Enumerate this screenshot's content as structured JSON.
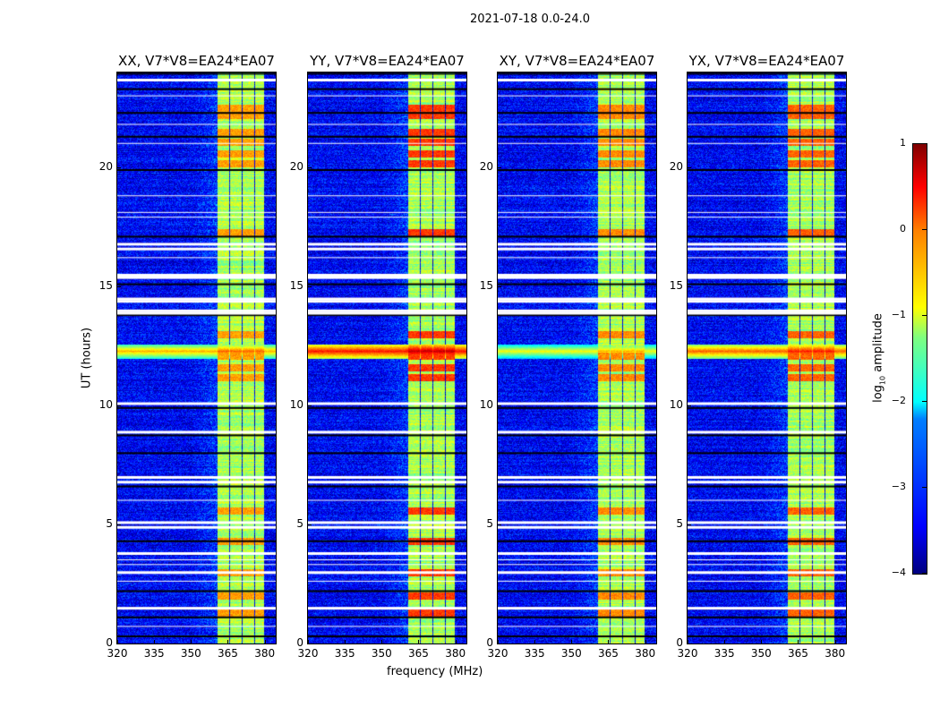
{
  "suptitle": "2021-07-18 0.0-24.0",
  "chart_data": {
    "type": "heatmap",
    "xlabel": "frequency (MHz)",
    "ylabel": "UT (hours)",
    "xlim": [
      320,
      384.5
    ],
    "ylim": [
      0,
      24
    ],
    "xticks": [
      320,
      335,
      350,
      365,
      380
    ],
    "yticks": [
      0,
      5,
      10,
      15,
      20
    ],
    "colorbar": {
      "label": "log10 amplitude",
      "label_main": "log",
      "label_sub": "10",
      "label_rest": " amplitude",
      "range": [
        -4,
        1
      ],
      "ticks": [
        1,
        0,
        -1,
        -2,
        -3,
        -4
      ],
      "colormap": "jet"
    },
    "features": {
      "background_level": -3.4,
      "rfi_band_columns_mhz": [
        [
          360.7,
          365.2
        ],
        [
          365.8,
          370.3
        ],
        [
          370.9,
          375.4
        ],
        [
          376.0,
          379.6
        ]
      ],
      "rfi_band_level": -1.3,
      "rfi_hot_times_ut": [
        22.5,
        22.2,
        21.5,
        21.1,
        20.6,
        20.2,
        17.3,
        13.0,
        12.1,
        11.6,
        11.2,
        5.6,
        4.3,
        3.0,
        2.0,
        1.3
      ],
      "broadband_event_ut": [
        12.0,
        12.6
      ],
      "flagged_white_times_ut": [
        23.7,
        16.8,
        16.6,
        15.5,
        15.4,
        14.5,
        14.4,
        14.0,
        13.9,
        10.1,
        8.9,
        7.0,
        6.8,
        5.1,
        4.9,
        3.8,
        3.0,
        1.5,
        23.0,
        21.8,
        21.0,
        18.8,
        18.1,
        17.9,
        16.2,
        6.0,
        3.5,
        3.3,
        2.6,
        0.7
      ],
      "flagged_black_times_ut": [
        23.95,
        23.3,
        22.3,
        21.3,
        19.9,
        17.1,
        15.1,
        13.8,
        9.9,
        8.75,
        8.0,
        6.6,
        4.3,
        2.2,
        1.1,
        0.3
      ]
    },
    "panels": [
      {
        "title": "XX, V7*V8=EA24*EA07",
        "event_level": -0.5,
        "hot_level": -0.4
      },
      {
        "title": "YY, V7*V8=EA24*EA07",
        "event_level": 0.3,
        "hot_level": 0.1
      },
      {
        "title": "XY, V7*V8=EA24*EA07",
        "event_level": -0.9,
        "hot_level": -0.3
      },
      {
        "title": "YX, V7*V8=EA24*EA07",
        "event_level": -0.1,
        "hot_level": -0.1
      }
    ]
  }
}
